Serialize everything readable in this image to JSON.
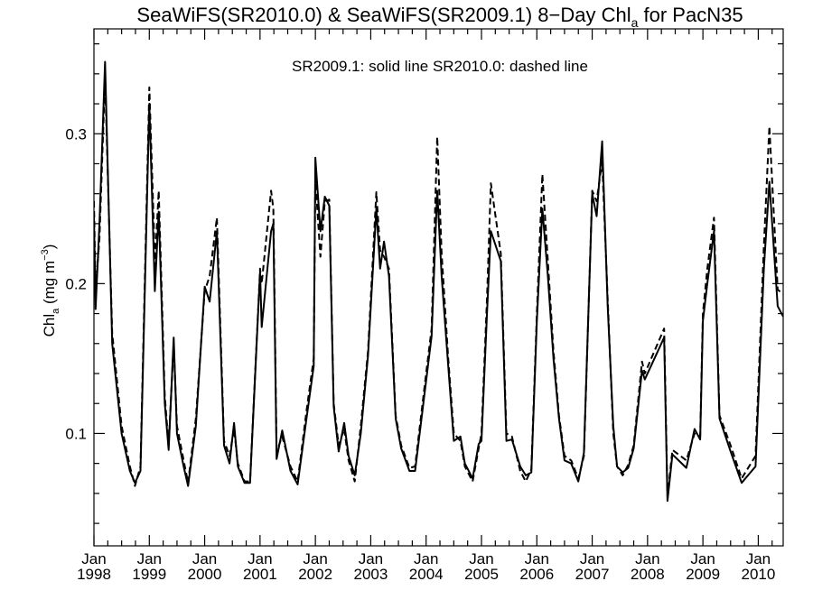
{
  "chart_data": {
    "type": "line",
    "title": "SeaWiFS(SR2010.0) & SeaWiFS(SR2009.1) 8-Day Chl_a for PacN35",
    "title_parts": {
      "pre": "SeaWiFS(SR2010.0) & SeaWiFS(SR2009.1) 8−Day Chl",
      "sub": "a",
      "post": " for PacN35"
    },
    "annotation": "SR2009.1: solid line   SR2010.0: dashed line",
    "ylabel": {
      "pre": "Chl",
      "sub": "a",
      "mid": " (mg m",
      "sup": "−3",
      "post": ")"
    },
    "ylim": [
      0.025,
      0.37
    ],
    "xlim": [
      1998.0,
      2010.45
    ],
    "y_ticks": [
      {
        "value": 0.1,
        "label": "0.1"
      },
      {
        "value": 0.2,
        "label": "0.2"
      },
      {
        "value": 0.3,
        "label": "0.3"
      }
    ],
    "x_ticks": [
      {
        "value": 1998,
        "month": "Jan",
        "year": "1998"
      },
      {
        "value": 1999,
        "month": "Jan",
        "year": "1999"
      },
      {
        "value": 2000,
        "month": "Jan",
        "year": "2000"
      },
      {
        "value": 2001,
        "month": "Jan",
        "year": "2001"
      },
      {
        "value": 2002,
        "month": "Jan",
        "year": "2002"
      },
      {
        "value": 2003,
        "month": "Jan",
        "year": "2003"
      },
      {
        "value": 2004,
        "month": "Jan",
        "year": "2004"
      },
      {
        "value": 2005,
        "month": "Jan",
        "year": "2005"
      },
      {
        "value": 2006,
        "month": "Jan",
        "year": "2006"
      },
      {
        "value": 2007,
        "month": "Jan",
        "year": "2007"
      },
      {
        "value": 2008,
        "month": "Jan",
        "year": "2008"
      },
      {
        "value": 2009,
        "month": "Jan",
        "year": "2009"
      },
      {
        "value": 2010,
        "month": "Jan",
        "year": "2010"
      }
    ],
    "grid": false,
    "series": [
      {
        "name": "SR2009.1",
        "style": "solid",
        "color": "#000000",
        "points": [
          [
            1998.0,
            0.245
          ],
          [
            1998.03,
            0.183
          ],
          [
            1998.1,
            0.24
          ],
          [
            1998.2,
            0.348
          ],
          [
            1998.33,
            0.16
          ],
          [
            1998.5,
            0.1
          ],
          [
            1998.65,
            0.075
          ],
          [
            1998.74,
            0.067
          ],
          [
            1998.84,
            0.075
          ],
          [
            1999.0,
            0.32
          ],
          [
            1999.08,
            0.22
          ],
          [
            1999.1,
            0.195
          ],
          [
            1999.17,
            0.248
          ],
          [
            1999.28,
            0.12
          ],
          [
            1999.35,
            0.089
          ],
          [
            1999.44,
            0.164
          ],
          [
            1999.5,
            0.1
          ],
          [
            1999.62,
            0.078
          ],
          [
            1999.7,
            0.065
          ],
          [
            1999.84,
            0.105
          ],
          [
            2000.0,
            0.198
          ],
          [
            2000.09,
            0.188
          ],
          [
            2000.22,
            0.235
          ],
          [
            2000.35,
            0.092
          ],
          [
            2000.45,
            0.08
          ],
          [
            2000.53,
            0.107
          ],
          [
            2000.6,
            0.078
          ],
          [
            2000.72,
            0.067
          ],
          [
            2000.82,
            0.067
          ],
          [
            2001.0,
            0.208
          ],
          [
            2001.03,
            0.171
          ],
          [
            2001.2,
            0.235
          ],
          [
            2001.24,
            0.24
          ],
          [
            2001.3,
            0.083
          ],
          [
            2001.4,
            0.102
          ],
          [
            2001.55,
            0.075
          ],
          [
            2001.68,
            0.066
          ],
          [
            2001.84,
            0.11
          ],
          [
            2001.97,
            0.145
          ],
          [
            2002.0,
            0.284
          ],
          [
            2002.09,
            0.235
          ],
          [
            2002.17,
            0.258
          ],
          [
            2002.25,
            0.252
          ],
          [
            2002.33,
            0.118
          ],
          [
            2002.42,
            0.088
          ],
          [
            2002.52,
            0.107
          ],
          [
            2002.6,
            0.085
          ],
          [
            2002.71,
            0.072
          ],
          [
            2002.82,
            0.1
          ],
          [
            2002.95,
            0.152
          ],
          [
            2003.1,
            0.25
          ],
          [
            2003.17,
            0.21
          ],
          [
            2003.24,
            0.228
          ],
          [
            2003.33,
            0.205
          ],
          [
            2003.45,
            0.11
          ],
          [
            2003.55,
            0.09
          ],
          [
            2003.7,
            0.075
          ],
          [
            2003.8,
            0.075
          ],
          [
            2004.0,
            0.135
          ],
          [
            2004.1,
            0.165
          ],
          [
            2004.2,
            0.262
          ],
          [
            2004.28,
            0.205
          ],
          [
            2004.4,
            0.145
          ],
          [
            2004.5,
            0.095
          ],
          [
            2004.62,
            0.098
          ],
          [
            2004.7,
            0.08
          ],
          [
            2004.84,
            0.07
          ],
          [
            2004.95,
            0.093
          ],
          [
            2005.0,
            0.095
          ],
          [
            2005.1,
            0.18
          ],
          [
            2005.17,
            0.235
          ],
          [
            2005.35,
            0.215
          ],
          [
            2005.45,
            0.095
          ],
          [
            2005.55,
            0.096
          ],
          [
            2005.7,
            0.078
          ],
          [
            2005.8,
            0.072
          ],
          [
            2005.9,
            0.074
          ],
          [
            2006.0,
            0.175
          ],
          [
            2006.1,
            0.25
          ],
          [
            2006.2,
            0.205
          ],
          [
            2006.3,
            0.15
          ],
          [
            2006.4,
            0.11
          ],
          [
            2006.5,
            0.082
          ],
          [
            2006.62,
            0.08
          ],
          [
            2006.75,
            0.068
          ],
          [
            2006.85,
            0.087
          ],
          [
            2007.0,
            0.26
          ],
          [
            2007.08,
            0.245
          ],
          [
            2007.18,
            0.295
          ],
          [
            2007.28,
            0.185
          ],
          [
            2007.38,
            0.105
          ],
          [
            2007.45,
            0.078
          ],
          [
            2007.55,
            0.074
          ],
          [
            2007.65,
            0.077
          ],
          [
            2007.75,
            0.09
          ],
          [
            2007.9,
            0.142
          ],
          [
            2007.95,
            0.136
          ],
          [
            2008.3,
            0.164
          ],
          [
            2008.36,
            0.055
          ],
          [
            2008.45,
            0.086
          ],
          [
            2008.7,
            0.077
          ],
          [
            2008.85,
            0.103
          ],
          [
            2008.95,
            0.096
          ],
          [
            2009.0,
            0.175
          ],
          [
            2009.08,
            0.2
          ],
          [
            2009.2,
            0.235
          ],
          [
            2009.3,
            0.11
          ],
          [
            2009.5,
            0.088
          ],
          [
            2009.7,
            0.067
          ],
          [
            2009.95,
            0.078
          ],
          [
            2010.1,
            0.21
          ],
          [
            2010.2,
            0.268
          ],
          [
            2010.35,
            0.185
          ],
          [
            2010.45,
            0.178
          ]
        ]
      },
      {
        "name": "SR2010.0",
        "style": "dashed",
        "color": "#000000",
        "points": [
          [
            1998.0,
            0.255
          ],
          [
            1998.03,
            0.195
          ],
          [
            1998.1,
            0.23
          ],
          [
            1998.2,
            0.338
          ],
          [
            1998.33,
            0.167
          ],
          [
            1998.5,
            0.105
          ],
          [
            1998.65,
            0.078
          ],
          [
            1998.74,
            0.065
          ],
          [
            1998.84,
            0.078
          ],
          [
            1999.0,
            0.331
          ],
          [
            1999.08,
            0.24
          ],
          [
            1999.1,
            0.212
          ],
          [
            1999.17,
            0.262
          ],
          [
            1999.28,
            0.125
          ],
          [
            1999.35,
            0.092
          ],
          [
            1999.44,
            0.16
          ],
          [
            1999.5,
            0.105
          ],
          [
            1999.62,
            0.082
          ],
          [
            1999.7,
            0.067
          ],
          [
            1999.84,
            0.11
          ],
          [
            2000.0,
            0.195
          ],
          [
            2000.09,
            0.205
          ],
          [
            2000.22,
            0.244
          ],
          [
            2000.35,
            0.095
          ],
          [
            2000.45,
            0.085
          ],
          [
            2000.53,
            0.103
          ],
          [
            2000.6,
            0.08
          ],
          [
            2000.72,
            0.068
          ],
          [
            2000.82,
            0.068
          ],
          [
            2001.0,
            0.21
          ],
          [
            2001.03,
            0.2
          ],
          [
            2001.2,
            0.262
          ],
          [
            2001.24,
            0.25
          ],
          [
            2001.3,
            0.088
          ],
          [
            2001.4,
            0.098
          ],
          [
            2001.55,
            0.078
          ],
          [
            2001.68,
            0.068
          ],
          [
            2001.84,
            0.115
          ],
          [
            2001.97,
            0.15
          ],
          [
            2002.0,
            0.27
          ],
          [
            2002.09,
            0.218
          ],
          [
            2002.17,
            0.255
          ],
          [
            2002.25,
            0.256
          ],
          [
            2002.33,
            0.12
          ],
          [
            2002.42,
            0.092
          ],
          [
            2002.52,
            0.103
          ],
          [
            2002.6,
            0.082
          ],
          [
            2002.71,
            0.068
          ],
          [
            2002.82,
            0.105
          ],
          [
            2002.95,
            0.155
          ],
          [
            2003.1,
            0.261
          ],
          [
            2003.17,
            0.222
          ],
          [
            2003.24,
            0.218
          ],
          [
            2003.33,
            0.21
          ],
          [
            2003.45,
            0.112
          ],
          [
            2003.55,
            0.092
          ],
          [
            2003.7,
            0.077
          ],
          [
            2003.8,
            0.078
          ],
          [
            2004.0,
            0.14
          ],
          [
            2004.1,
            0.17
          ],
          [
            2004.2,
            0.298
          ],
          [
            2004.28,
            0.22
          ],
          [
            2004.4,
            0.15
          ],
          [
            2004.5,
            0.1
          ],
          [
            2004.62,
            0.095
          ],
          [
            2004.7,
            0.078
          ],
          [
            2004.84,
            0.068
          ],
          [
            2004.95,
            0.09
          ],
          [
            2005.0,
            0.1
          ],
          [
            2005.1,
            0.19
          ],
          [
            2005.17,
            0.267
          ],
          [
            2005.35,
            0.22
          ],
          [
            2005.45,
            0.1
          ],
          [
            2005.55,
            0.098
          ],
          [
            2005.7,
            0.075
          ],
          [
            2005.8,
            0.068
          ],
          [
            2005.9,
            0.076
          ],
          [
            2006.0,
            0.18
          ],
          [
            2006.1,
            0.273
          ],
          [
            2006.2,
            0.215
          ],
          [
            2006.3,
            0.155
          ],
          [
            2006.4,
            0.112
          ],
          [
            2006.5,
            0.085
          ],
          [
            2006.62,
            0.082
          ],
          [
            2006.75,
            0.07
          ],
          [
            2006.85,
            0.085
          ],
          [
            2007.0,
            0.262
          ],
          [
            2007.08,
            0.255
          ],
          [
            2007.18,
            0.282
          ],
          [
            2007.28,
            0.19
          ],
          [
            2007.38,
            0.1
          ],
          [
            2007.45,
            0.078
          ],
          [
            2007.55,
            0.072
          ],
          [
            2007.65,
            0.079
          ],
          [
            2007.75,
            0.092
          ],
          [
            2007.9,
            0.148
          ],
          [
            2007.95,
            0.14
          ],
          [
            2008.3,
            0.17
          ],
          [
            2008.36,
            0.058
          ],
          [
            2008.45,
            0.089
          ],
          [
            2008.7,
            0.082
          ],
          [
            2008.85,
            0.1
          ],
          [
            2008.95,
            0.098
          ],
          [
            2009.0,
            0.18
          ],
          [
            2009.08,
            0.21
          ],
          [
            2009.2,
            0.244
          ],
          [
            2009.3,
            0.112
          ],
          [
            2009.5,
            0.092
          ],
          [
            2009.7,
            0.07
          ],
          [
            2009.95,
            0.085
          ],
          [
            2010.1,
            0.225
          ],
          [
            2010.2,
            0.305
          ],
          [
            2010.35,
            0.196
          ],
          [
            2010.45,
            0.193
          ]
        ]
      }
    ]
  }
}
